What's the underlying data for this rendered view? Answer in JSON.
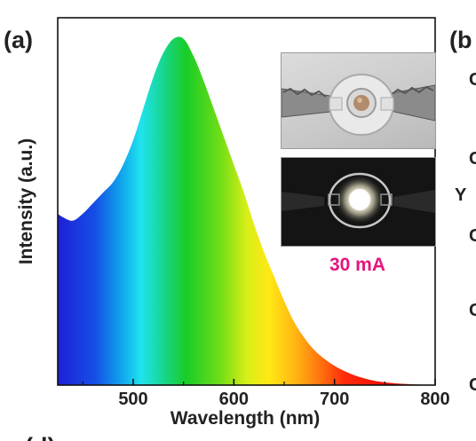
{
  "panel_labels": {
    "a": "(a)",
    "b": "(b",
    "d": "(d)"
  },
  "right_panel_fragments": [
    "C",
    "C",
    "Y",
    "C",
    "C",
    "C"
  ],
  "inset": {
    "caption": "30 mA"
  },
  "chart_data": {
    "type": "area",
    "title": "",
    "xlabel": "Wavelength (nm)",
    "ylabel": "Intensity (a.u.)",
    "xlim": [
      425,
      800
    ],
    "ylim": [
      0,
      1.05
    ],
    "xticks": [
      500,
      600,
      700,
      800
    ],
    "fill": "visible-spectrum color gradient",
    "x": [
      425,
      430,
      440,
      450,
      460,
      470,
      480,
      490,
      500,
      510,
      520,
      530,
      540,
      550,
      560,
      570,
      580,
      590,
      600,
      610,
      620,
      630,
      640,
      650,
      660,
      670,
      680,
      690,
      700,
      710,
      720,
      730,
      740,
      750,
      760,
      780,
      800
    ],
    "y": [
      0.49,
      0.48,
      0.47,
      0.49,
      0.52,
      0.55,
      0.58,
      0.63,
      0.7,
      0.79,
      0.88,
      0.95,
      0.99,
      0.99,
      0.94,
      0.87,
      0.79,
      0.71,
      0.63,
      0.55,
      0.46,
      0.38,
      0.31,
      0.24,
      0.18,
      0.135,
      0.1,
      0.075,
      0.055,
      0.04,
      0.028,
      0.019,
      0.012,
      0.008,
      0.005,
      0.002,
      0.0
    ]
  }
}
